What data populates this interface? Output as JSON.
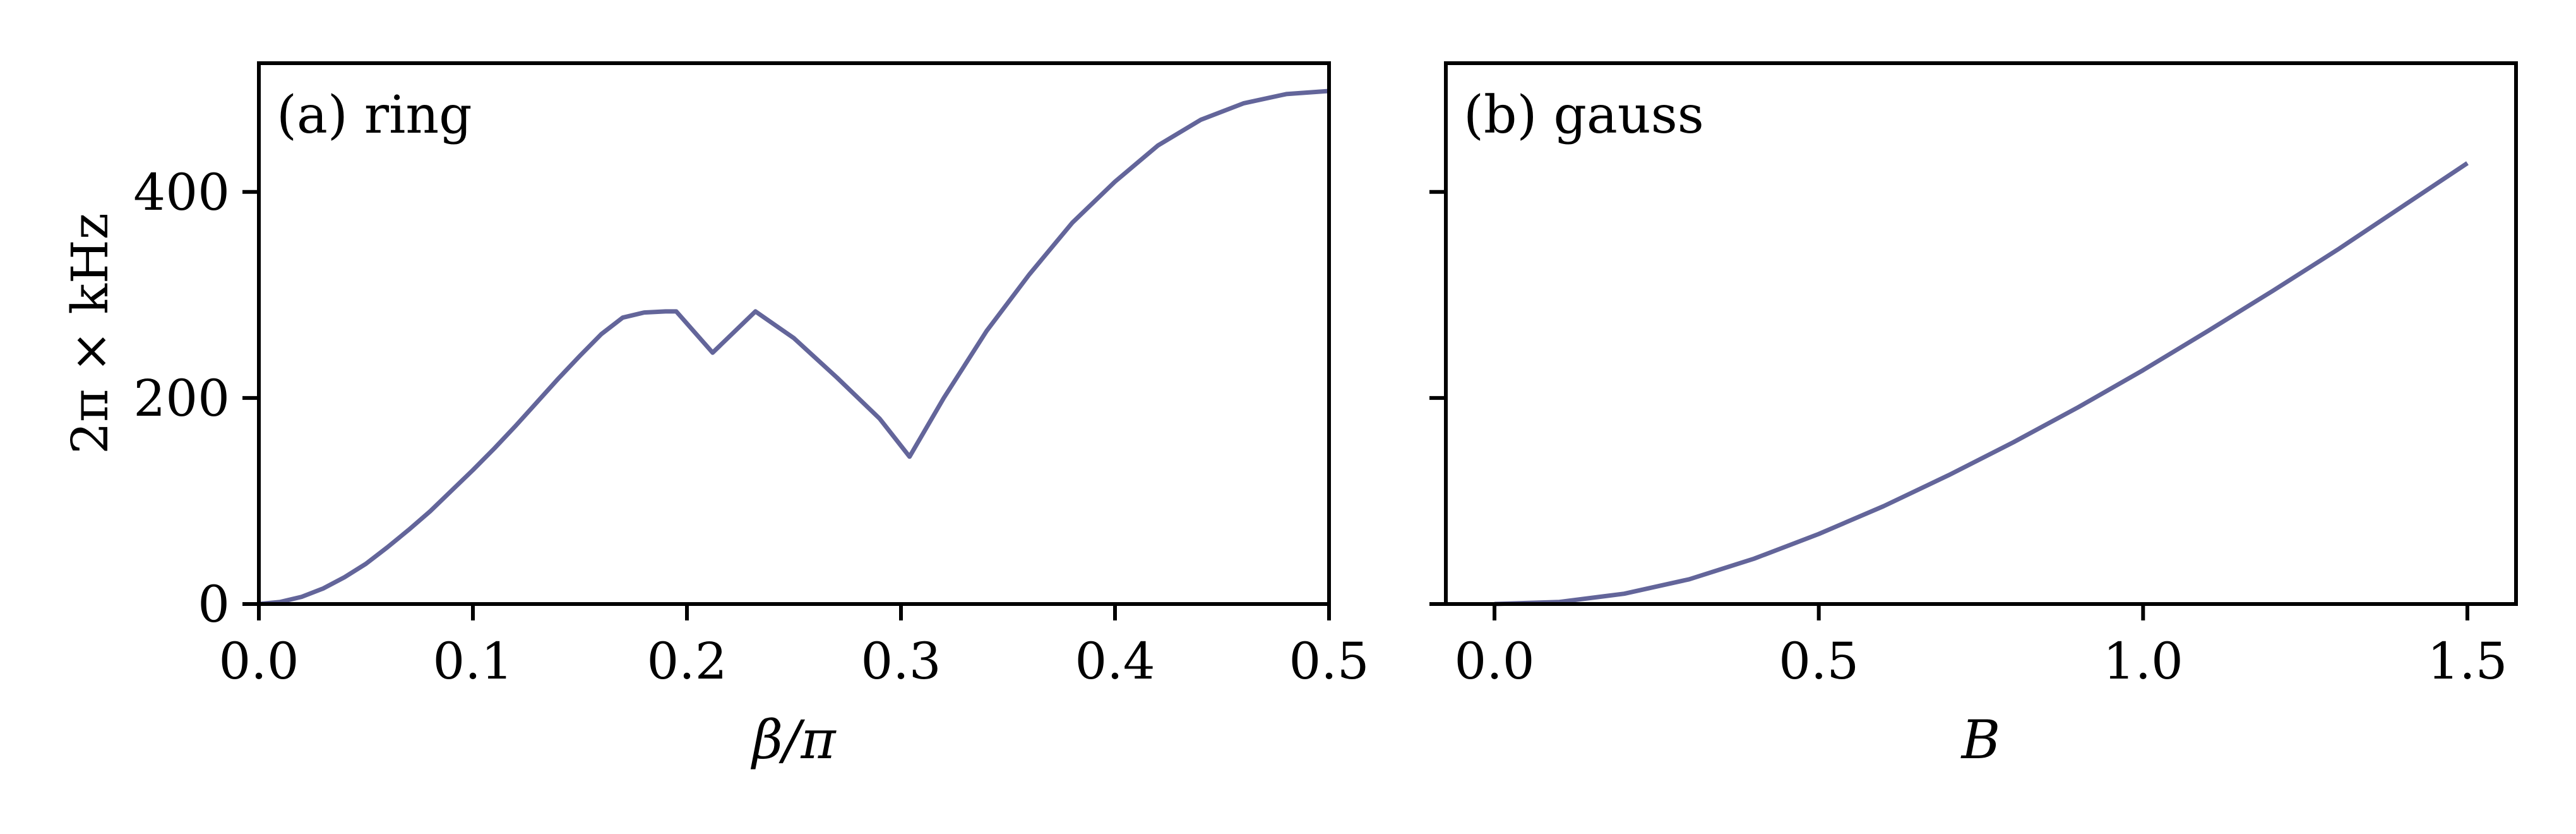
{
  "chart_data": [
    {
      "type": "line",
      "panel": "(a) ring",
      "xlabel": "β/π",
      "ylabel": "2π × kHz",
      "xlim": [
        0.0,
        0.5
      ],
      "ylim": [
        0,
        525
      ],
      "xticks": [
        0.0,
        0.1,
        0.2,
        0.3,
        0.4,
        0.5
      ],
      "xtick_labels": [
        "0.0",
        "0.1",
        "0.2",
        "0.3",
        "0.4",
        "0.5"
      ],
      "yticks": [
        0,
        200,
        400
      ],
      "ytick_labels": [
        "0",
        "200",
        "400"
      ],
      "grid": false,
      "series": [
        {
          "color": "#63659a",
          "x": [
            0.0,
            0.01,
            0.02,
            0.03,
            0.04,
            0.05,
            0.06,
            0.07,
            0.08,
            0.09,
            0.1,
            0.11,
            0.12,
            0.13,
            0.14,
            0.15,
            0.16,
            0.17,
            0.18,
            0.19,
            0.195,
            0.212,
            0.232,
            0.25,
            0.27,
            0.29,
            0.304,
            0.32,
            0.34,
            0.36,
            0.38,
            0.4,
            0.42,
            0.44,
            0.46,
            0.48,
            0.5
          ],
          "y": [
            0,
            2,
            7,
            15,
            26,
            39,
            55,
            72,
            90,
            110,
            130,
            151,
            173,
            196,
            219,
            241,
            262,
            278,
            283,
            284,
            284,
            244,
            284,
            258,
            220,
            180,
            143,
            200,
            265,
            320,
            370,
            410,
            445,
            470,
            486,
            495,
            498
          ]
        }
      ]
    },
    {
      "type": "line",
      "panel": "(b) gauss",
      "xlabel": "B",
      "ylabel": "",
      "xlim": [
        -0.075,
        1.575
      ],
      "ylim": [
        0,
        525
      ],
      "xticks": [
        0.0,
        0.5,
        1.0,
        1.5
      ],
      "xtick_labels": [
        "0.0",
        "0.5",
        "1.0",
        "1.5"
      ],
      "yticks": [
        0,
        200,
        400
      ],
      "ytick_labels": [
        "",
        "",
        ""
      ],
      "grid": false,
      "series": [
        {
          "color": "#63659a",
          "x": [
            0.0,
            0.1,
            0.2,
            0.3,
            0.4,
            0.5,
            0.6,
            0.7,
            0.8,
            0.9,
            1.0,
            1.1,
            1.2,
            1.3,
            1.4,
            1.5
          ],
          "y": [
            0,
            2,
            10,
            24,
            44,
            68,
            95,
            125,
            157,
            191,
            227,
            265,
            304,
            344,
            386,
            428
          ]
        }
      ]
    }
  ]
}
